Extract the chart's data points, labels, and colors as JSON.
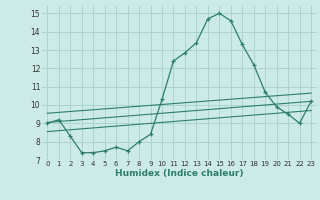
{
  "title": "",
  "xlabel": "Humidex (Indice chaleur)",
  "background_color": "#cceae7",
  "grid_color": "#aad4d0",
  "line_color": "#2e7d6e",
  "xlim": [
    -0.5,
    23.5
  ],
  "ylim": [
    7,
    15.4
  ],
  "yticks": [
    7,
    8,
    9,
    10,
    11,
    12,
    13,
    14,
    15
  ],
  "xticks": [
    0,
    1,
    2,
    3,
    4,
    5,
    6,
    7,
    8,
    9,
    10,
    11,
    12,
    13,
    14,
    15,
    16,
    17,
    18,
    19,
    20,
    21,
    22,
    23
  ],
  "main_curve_x": [
    0,
    1,
    2,
    3,
    4,
    5,
    6,
    7,
    8,
    9,
    10,
    11,
    12,
    13,
    14,
    15,
    16,
    17,
    18,
    19,
    20,
    21,
    22,
    23
  ],
  "main_curve_y": [
    9.0,
    9.2,
    8.3,
    7.4,
    7.4,
    7.5,
    7.7,
    7.5,
    8.0,
    8.4,
    10.3,
    12.4,
    12.85,
    13.4,
    14.7,
    15.0,
    14.6,
    13.3,
    12.2,
    10.7,
    9.9,
    9.5,
    9.0,
    10.2
  ],
  "trend1_x": [
    0,
    23
  ],
  "trend1_y": [
    9.05,
    10.2
  ],
  "trend2_x": [
    0,
    23
  ],
  "trend2_y": [
    8.55,
    9.7
  ],
  "trend3_x": [
    0,
    23
  ],
  "trend3_y": [
    9.55,
    10.65
  ]
}
